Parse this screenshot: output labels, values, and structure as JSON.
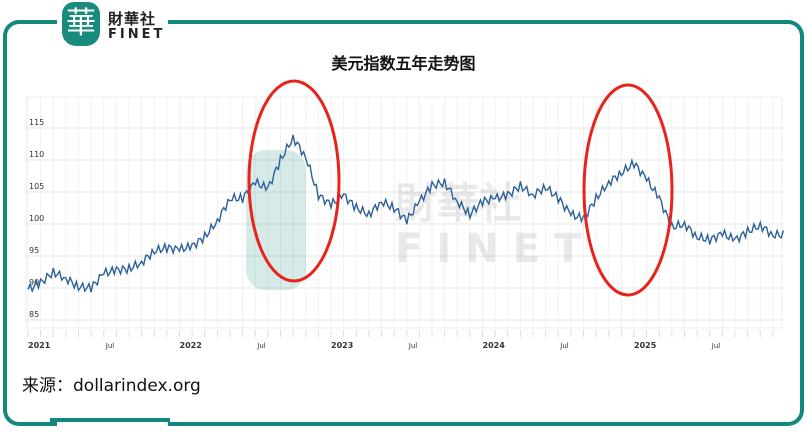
{
  "logo": {
    "glyph": "華",
    "cn": "財華社",
    "en": "FINET"
  },
  "title": "美元指数五年走势图",
  "source": "来源：dollarindex.org",
  "colors": {
    "frame": "#12897f",
    "line": "#2a6099",
    "highlight": "#e8231b"
  },
  "chart_data": {
    "type": "line",
    "title": "美元指数五年走势图",
    "xlabel": "",
    "ylabel": "",
    "ylim": [
      82,
      120
    ],
    "yticks": [
      85,
      90,
      95,
      100,
      105,
      110,
      115
    ],
    "ytick_labels": [
      "85",
      "90",
      "95",
      "100",
      "105",
      "110",
      "115"
    ],
    "xtick_labels": [
      "2021",
      "Jul",
      "2022",
      "Jul",
      "2023",
      "Jul",
      "2024",
      "Jul",
      "2025",
      "Jul"
    ],
    "grid": true,
    "annotations": [
      "red ellipse around 2022 peak (Jul–Dec 2022)",
      "red ellipse around late 2024 – early 2025 peak"
    ],
    "series": [
      {
        "x": [
          "2021-01",
          "2021-02",
          "2021-03",
          "2021-04",
          "2021-05",
          "2021-06",
          "2021-07",
          "2021-08",
          "2021-09",
          "2021-10",
          "2021-11",
          "2021-12",
          "2022-01",
          "2022-02",
          "2022-03",
          "2022-04",
          "2022-05",
          "2022-06",
          "2022-07",
          "2022-08",
          "2022-09",
          "2022-10",
          "2022-11",
          "2022-12",
          "2023-01",
          "2023-02",
          "2023-03",
          "2023-04",
          "2023-05",
          "2023-06",
          "2023-07",
          "2023-08",
          "2023-09",
          "2023-10",
          "2023-11",
          "2023-12",
          "2024-01",
          "2024-02",
          "2024-03",
          "2024-04",
          "2024-05",
          "2024-06",
          "2024-07",
          "2024-08",
          "2024-09",
          "2024-10",
          "2024-11",
          "2024-12",
          "2025-01",
          "2025-02",
          "2025-03",
          "2025-04",
          "2025-05",
          "2025-06",
          "2025-07",
          "2025-08",
          "2025-09",
          "2025-10",
          "2025-11",
          "2025-12"
        ],
        "values": [
          89.8,
          90.8,
          92.5,
          91.5,
          90.2,
          90.0,
          92.3,
          92.8,
          93.0,
          94.0,
          95.8,
          96.3,
          96.0,
          96.5,
          98.0,
          100.5,
          104.0,
          104.0,
          106.5,
          105.5,
          110.0,
          113.5,
          110.5,
          104.5,
          103.0,
          104.5,
          102.5,
          101.5,
          103.5,
          102.5,
          100.5,
          103.5,
          106.0,
          106.5,
          103.5,
          101.5,
          103.5,
          104.0,
          104.5,
          106.0,
          104.5,
          105.8,
          104.0,
          101.5,
          100.8,
          104.0,
          106.5,
          108.0,
          109.5,
          107.0,
          104.0,
          99.5,
          100.0,
          98.0,
          97.5,
          98.5,
          97.5,
          98.8,
          99.8,
          98.3
        ]
      }
    ]
  }
}
